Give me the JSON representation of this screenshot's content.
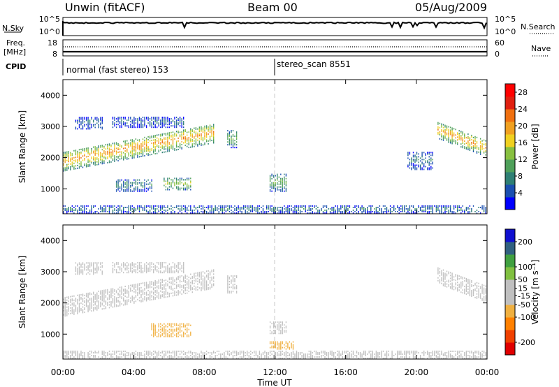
{
  "header": {
    "station": "Unwin (fitACF)",
    "beam": "Beam 00",
    "date": "05/Aug/2009"
  },
  "nsky_panel": {
    "left_label": "N.Sky",
    "left_ticks": [
      "10^5",
      "10^0"
    ],
    "right_ticks": [
      "10^5",
      "10^0"
    ],
    "right_label": "N.Search"
  },
  "freq_panel": {
    "label_line1": "Freq.",
    "label_line2": "[MHz]",
    "left_ticks": [
      "18",
      "8"
    ],
    "right_ticks": [
      "60",
      "0"
    ],
    "right_label": "Nave"
  },
  "cpid_panel": {
    "label": "CPID",
    "modes": [
      {
        "text": "normal (fast stereo) 153",
        "start_ut": 0
      },
      {
        "text": "stereo_scan 8551",
        "start_ut": 12
      }
    ]
  },
  "time_axis": {
    "label": "Time UT",
    "ticks": [
      "00:00",
      "04:00",
      "08:00",
      "12:00",
      "16:00",
      "20:00",
      "00:00"
    ],
    "tick_hours": [
      0,
      4,
      8,
      12,
      16,
      20,
      24
    ]
  },
  "colors": {
    "power": [
      "#0000ff",
      "#1a4fb0",
      "#2e7f74",
      "#4fa05a",
      "#88c040",
      "#f0d020",
      "#f0a020",
      "#f07010",
      "#e02010",
      "#ff0000"
    ],
    "velocity": [
      "#e00000",
      "#f04000",
      "#ff8000",
      "#f0b040",
      "#c0c0c0",
      "#c0c0c0",
      "#80c040",
      "#40a040",
      "#306080",
      "#1010d0"
    ]
  },
  "chart_data": [
    {
      "type": "heatmap",
      "title": "",
      "xlabel": "",
      "ylabel": "Slant Range [km]",
      "xlim": [
        0,
        24
      ],
      "ylim": [
        200,
        4500
      ],
      "y_ticks": [
        "1000",
        "2000",
        "3000",
        "4000"
      ],
      "y_tick_values": [
        1000,
        2000,
        3000,
        4000
      ],
      "colorbar": {
        "label": "Power [dB]",
        "ticks": [
          "4",
          "8",
          "12",
          "16",
          "20",
          "24",
          "28"
        ],
        "tick_values": [
          4,
          8,
          12,
          16,
          20,
          24,
          28
        ],
        "range": [
          0,
          30
        ]
      },
      "regions": [
        {
          "x": [
            0.0,
            8.5
          ],
          "y_start": [
            1550,
            2450
          ],
          "y_end": [
            1650,
            2650
          ],
          "width_km": 650,
          "value": 14
        },
        {
          "x": [
            0.7,
            2.3
          ],
          "y": [
            2900,
            3300
          ],
          "value": 4
        },
        {
          "x": [
            2.8,
            6.8
          ],
          "y": [
            2950,
            3300
          ],
          "value": 4
        },
        {
          "x": [
            3.0,
            5.0
          ],
          "y": [
            900,
            1300
          ],
          "value": 6
        },
        {
          "x": [
            5.7,
            7.2
          ],
          "y": [
            950,
            1350
          ],
          "value": 10
        },
        {
          "x": [
            9.3,
            9.8
          ],
          "y": [
            2300,
            2900
          ],
          "value": 8
        },
        {
          "x": [
            11.7,
            12.6
          ],
          "y": [
            900,
            1500
          ],
          "value": 8
        },
        {
          "x": [
            0.0,
            24.0
          ],
          "y": [
            200,
            450
          ],
          "value": 5
        },
        {
          "x": [
            21.2,
            24.0
          ],
          "y_start": [
            2600,
            2000
          ],
          "y_end": [
            2000,
            1600
          ],
          "width_km": 550,
          "value": 14
        },
        {
          "x": [
            19.5,
            21.0
          ],
          "y": [
            1600,
            2200
          ],
          "value": 5
        }
      ]
    },
    {
      "type": "heatmap",
      "title": "",
      "xlabel": "Time UT",
      "ylabel": "Slant Range [km]",
      "xlim": [
        0,
        24
      ],
      "ylim": [
        200,
        4500
      ],
      "y_ticks": [
        "1000",
        "2000",
        "3000",
        "4000"
      ],
      "y_tick_values": [
        1000,
        2000,
        3000,
        4000
      ],
      "colorbar": {
        "label": "Velocity [m s⁻¹]",
        "ticks": [
          "-200",
          "-100",
          "-50",
          "-15",
          "15",
          "50",
          "100",
          "200"
        ],
        "tick_values": [
          -200,
          -100,
          -50,
          -15,
          15,
          50,
          100,
          200
        ],
        "range": [
          -250,
          250
        ]
      },
      "regions": [
        {
          "x": [
            0.0,
            8.5
          ],
          "y_start": [
            1550,
            2450
          ],
          "y_end": [
            1650,
            2650
          ],
          "width_km": 650,
          "value": 0
        },
        {
          "x": [
            0.7,
            2.3
          ],
          "y": [
            2900,
            3300
          ],
          "value": 0
        },
        {
          "x": [
            2.8,
            6.8
          ],
          "y": [
            2950,
            3300
          ],
          "value": 0
        },
        {
          "x": [
            5.0,
            7.2
          ],
          "y": [
            900,
            1350
          ],
          "value": -70
        },
        {
          "x": [
            9.3,
            9.8
          ],
          "y": [
            2300,
            2900
          ],
          "value": 30
        },
        {
          "x": [
            11.7,
            12.6
          ],
          "y": [
            1000,
            1400
          ],
          "value": 0
        },
        {
          "x": [
            11.7,
            13.0
          ],
          "y": [
            500,
            750
          ],
          "value": -70
        },
        {
          "x": [
            0.0,
            24.0
          ],
          "y": [
            200,
            450
          ],
          "value": 30
        },
        {
          "x": [
            21.2,
            24.0
          ],
          "y_start": [
            2600,
            2000
          ],
          "y_end": [
            2000,
            1600
          ],
          "width_km": 550,
          "value": 0
        }
      ]
    }
  ]
}
